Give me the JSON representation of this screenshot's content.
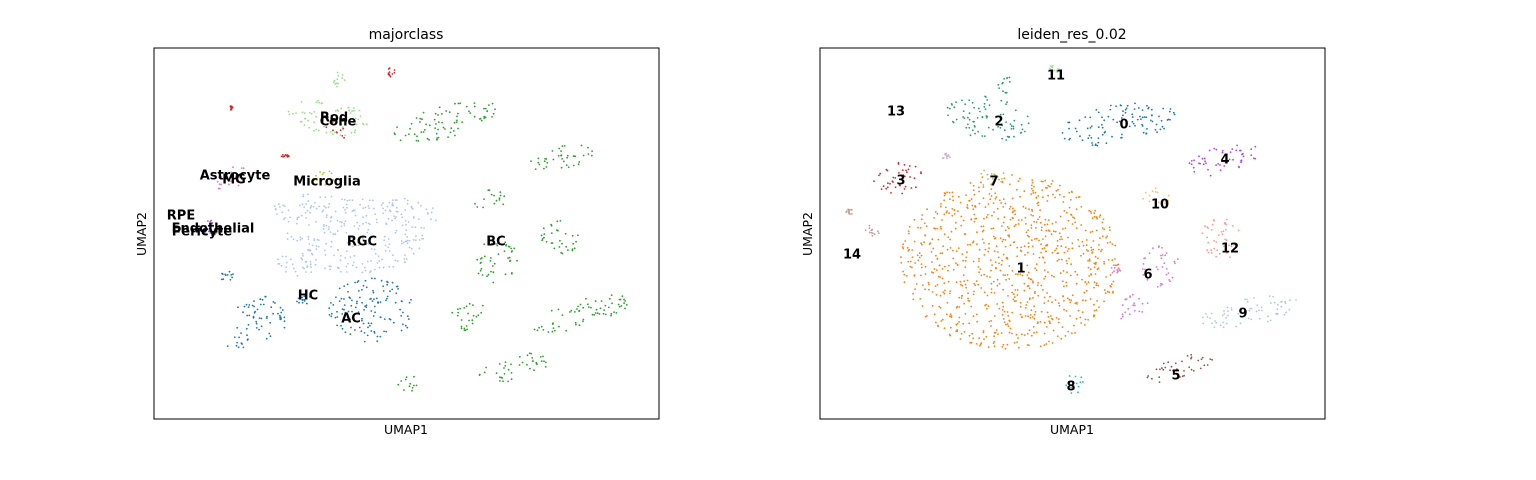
{
  "chart_data": [
    {
      "type": "scatter",
      "title": "majorclass",
      "xlabel": "UMAP1",
      "ylabel": "UMAP2",
      "grid": false,
      "legend": "on data",
      "clusters": [
        {
          "label": "Rod",
          "color": "#98df8a"
        },
        {
          "label": "Cone",
          "color": "#d62728"
        },
        {
          "label": "Astrocyte",
          "color": "#d62728"
        },
        {
          "label": "MG",
          "color": "#e377c2"
        },
        {
          "label": "Microglia",
          "color": "#bcbd22"
        },
        {
          "label": "RPE",
          "color": "#9467bd"
        },
        {
          "label": "Endothelial",
          "color": "#9467bd"
        },
        {
          "label": "Pericyte",
          "color": "#8c564b"
        },
        {
          "label": "RGC",
          "color": "#aec7e8"
        },
        {
          "label": "BC",
          "color": "#2ca02c"
        },
        {
          "label": "HC",
          "color": "#1f77b4"
        },
        {
          "label": "AC",
          "color": "#1f77b4"
        }
      ]
    },
    {
      "type": "scatter",
      "title": "leiden_res_0.02",
      "xlabel": "UMAP1",
      "ylabel": "UMAP2",
      "grid": false,
      "legend": "on data",
      "clusters": [
        {
          "label": "0",
          "color": "#1f77b4"
        },
        {
          "label": "1",
          "color": "#ff7f0e"
        },
        {
          "label": "2",
          "color": "#279e68"
        },
        {
          "label": "3",
          "color": "#d62728"
        },
        {
          "label": "4",
          "color": "#aa40fc"
        },
        {
          "label": "5",
          "color": "#8c564b"
        },
        {
          "label": "6",
          "color": "#e377c2"
        },
        {
          "label": "7",
          "color": "#b5bd61"
        },
        {
          "label": "8",
          "color": "#17becf"
        },
        {
          "label": "9",
          "color": "#aec7e8"
        },
        {
          "label": "10",
          "color": "#ffbb78"
        },
        {
          "label": "11",
          "color": "#98df8a"
        },
        {
          "label": "12",
          "color": "#ff9896"
        },
        {
          "label": "13",
          "color": "#c5b0d5"
        },
        {
          "label": "14",
          "color": "#c49c94"
        }
      ]
    }
  ]
}
